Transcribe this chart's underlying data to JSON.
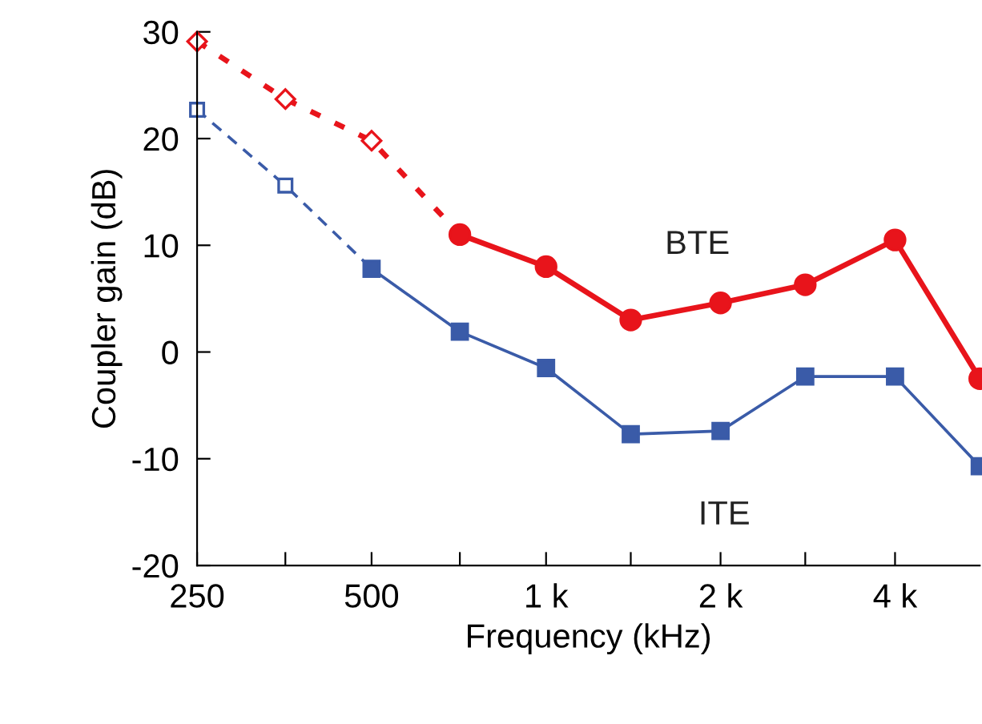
{
  "chart_data": {
    "type": "line",
    "xlabel": "Frequency (kHz)",
    "ylabel": "Coupler gain (dB)",
    "log": "x",
    "xlim": [
      250,
      5600
    ],
    "xticks": [
      250,
      {
        "value": 355,
        "label": null
      },
      500,
      {
        "value": 710,
        "label": null
      },
      {
        "value": 1000,
        "label": "1 k"
      },
      {
        "value": 1400,
        "label": null
      },
      {
        "value": 2000,
        "label": "2 k"
      },
      {
        "value": 2800,
        "label": null
      },
      {
        "value": 4000,
        "label": "4 k"
      }
    ],
    "ylim": [
      -20,
      30
    ],
    "yticks": [
      -20,
      -10,
      0,
      10,
      20,
      30
    ],
    "grid": false,
    "legend": false,
    "series": [
      {
        "color": "#e8141b",
        "marker": "diamond",
        "line_style": "dotted",
        "x": [
          250,
          355,
          500,
          710
        ],
        "values": [
          29.1,
          23.7,
          19.8,
          11
        ]
      },
      {
        "name": "BTE",
        "color": "#e8141b",
        "marker": "circle",
        "line_style": "solid",
        "x": [
          710,
          1000,
          1400,
          2000,
          2800,
          4000,
          5600
        ],
        "values": [
          11,
          8,
          3,
          4.6,
          6.3,
          10.5,
          -2.5
        ]
      },
      {
        "color": "#3a5ba8",
        "marker": "square",
        "line_style": "dashed",
        "x": [
          250,
          355,
          500
        ],
        "values": [
          22.7,
          15.6,
          7.8
        ]
      },
      {
        "name": "ITE",
        "color": "#3a5ba8",
        "marker": "square",
        "line_style": "solid",
        "x": [
          500,
          710,
          1000,
          1400,
          2000,
          2800,
          4000,
          5600
        ],
        "values": [
          7.8,
          1.9,
          -1.5,
          -7.7,
          -7.4,
          -2.3,
          -2.3,
          -10.7
        ]
      }
    ]
  }
}
